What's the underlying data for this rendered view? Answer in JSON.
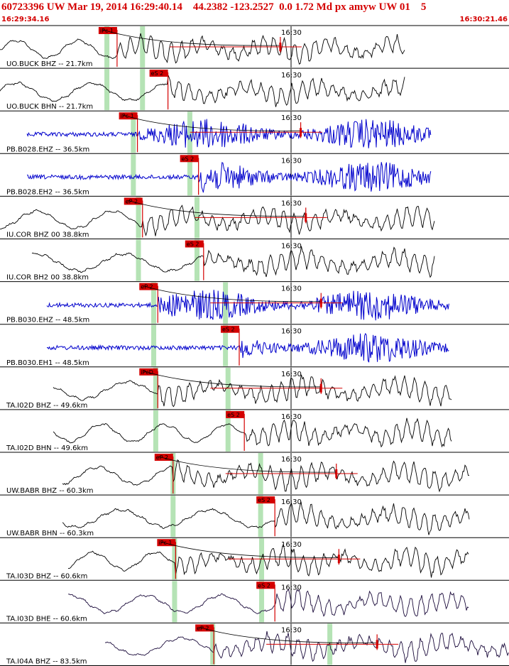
{
  "header": {
    "title": "60723396 UW Mar 19, 2014 16:29:40.14    44.2382 -123.2527  0.0 1.72 Md px amyw UW 01    5",
    "start_time": "16:29:34.16",
    "end_time": "16:30:21.46"
  },
  "colors": {
    "accent": "#d40000",
    "trace_black": "#000000",
    "trace_blue": "#0000cc",
    "trace_purple": "#1a0a3a",
    "green_marker": "#b5e3b5",
    "frame": "#000000"
  },
  "chart_data": {
    "type": "seismogram",
    "x_time_window": [
      "16:29:34.16",
      "16:30:21.46"
    ],
    "minute_tick_label": "16:30",
    "traces": [
      {
        "label": "UO.BUCK BHZ -- 21.7km",
        "color": "trace_black",
        "pick": "iPc 1",
        "pick_x": 0.23,
        "green": [
          0.21,
          0.28
        ],
        "coda": true
      },
      {
        "label": "UO.BUCK BHN -- 21.7km",
        "color": "trace_black",
        "pick": "eS 2",
        "pick_x": 0.33,
        "green": [
          0.21,
          0.28
        ],
        "coda": false
      },
      {
        "label": "PB.B028.EHZ -- 36.5km",
        "color": "trace_blue",
        "pick": "iPc 1",
        "pick_x": 0.27,
        "green": [
          0.262,
          0.373
        ],
        "coda": true
      },
      {
        "label": "PB.B028.EH2 -- 36.5km",
        "color": "trace_blue",
        "pick": "eS 2",
        "pick_x": 0.39,
        "green": [
          0.262,
          0.373
        ],
        "coda": false
      },
      {
        "label": "IU.COR BHZ 00 38.8km",
        "color": "trace_black",
        "pick": "eP 2",
        "pick_x": 0.28,
        "green": [
          0.272,
          0.387
        ],
        "coda": true
      },
      {
        "label": "IU.COR BH2 00 38.8km",
        "color": "trace_black",
        "pick": "eS 2",
        "pick_x": 0.4,
        "green": [
          0.272,
          0.387
        ],
        "coda": false
      },
      {
        "label": "PB.B030.EHZ -- 48.5km",
        "color": "trace_blue",
        "pick": "eP 2",
        "pick_x": 0.31,
        "green": [
          0.302,
          0.443
        ],
        "coda": true
      },
      {
        "label": "PB.B030.EH1 -- 48.5km",
        "color": "trace_blue",
        "pick": "eS 2",
        "pick_x": 0.47,
        "green": [
          0.302,
          0.443
        ],
        "coda": false
      },
      {
        "label": "TA.I02D BHZ -- 49.6km",
        "color": "trace_black",
        "pick": "iPcD",
        "pick_x": 0.31,
        "green": [
          0.306,
          0.448
        ],
        "coda": true
      },
      {
        "label": "TA.I02D BHN -- 49.6km",
        "color": "trace_black",
        "pick": "eS 2",
        "pick_x": 0.48,
        "green": [
          0.306,
          0.448
        ],
        "coda": false
      },
      {
        "label": "UW.BABR BHZ -- 60.3km",
        "color": "trace_black",
        "pick": "eP 2",
        "pick_x": 0.34,
        "green": [
          0.34,
          0.512
        ],
        "coda": true
      },
      {
        "label": "UW.BABR BHN -- 60.3km",
        "color": "trace_black",
        "pick": "eS 2",
        "pick_x": 0.54,
        "green": [
          0.34,
          0.512
        ],
        "coda": false
      },
      {
        "label": "TA.I03D BHZ -- 60.6km",
        "color": "trace_black",
        "pick": "iPc 1",
        "pick_x": 0.345,
        "green": [
          0.343,
          0.514
        ],
        "coda": true
      },
      {
        "label": "TA.I03D BHE -- 60.6km",
        "color": "trace_purple",
        "pick": "eS 2",
        "pick_x": 0.54,
        "green": [
          0.343,
          0.514
        ],
        "coda": false
      },
      {
        "label": "TA.I04A BHZ -- 83.5km",
        "color": "trace_purple",
        "pick": "eP 2",
        "pick_x": 0.42,
        "green": [
          0.418,
          0.648
        ],
        "coda": true
      }
    ]
  }
}
